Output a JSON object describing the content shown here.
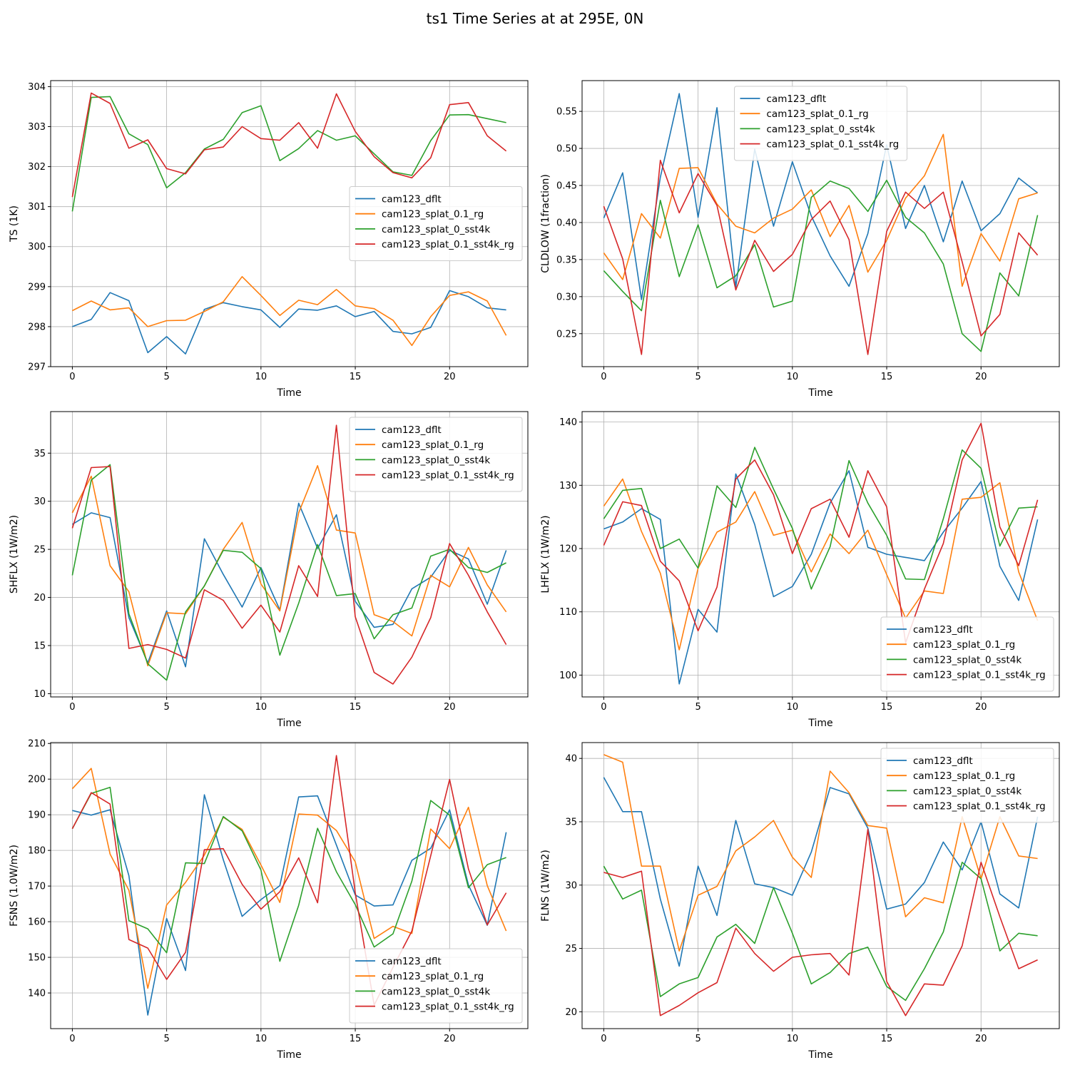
{
  "suptitle": "ts1 Time Series at at 295E, 0N",
  "colors": {
    "cam123_dflt": "#1f77b4",
    "cam123_splat_0.1_rg": "#ff7f0e",
    "cam123_splat_0_sst4k": "#2ca02c",
    "cam123_splat_0.1_sst4k_rg": "#d62728"
  },
  "chart_data": [
    {
      "type": "line",
      "xlabel": "Time",
      "ylabel": "TS (1K)",
      "xlim": [
        -1.15,
        24.15
      ],
      "ylim": [
        297.0,
        304.15
      ],
      "xticks": [
        0,
        5,
        10,
        15,
        20
      ],
      "yticks": [
        297,
        298,
        299,
        300,
        301,
        302,
        303,
        304
      ],
      "ytick_decimals": 0,
      "grid": true,
      "legend": "center-right",
      "x": [
        0,
        1,
        2,
        3,
        4,
        5,
        6,
        7,
        8,
        9,
        10,
        11,
        12,
        13,
        14,
        15,
        16,
        17,
        18,
        19,
        20,
        21,
        22,
        23
      ],
      "series": [
        {
          "name": "cam123_dflt",
          "values": [
            298.0,
            298.18,
            298.85,
            298.65,
            297.35,
            297.75,
            297.32,
            298.43,
            298.6,
            298.5,
            298.42,
            297.98,
            298.44,
            298.41,
            298.52,
            298.25,
            298.38,
            297.88,
            297.82,
            297.98,
            298.9,
            298.75,
            298.47,
            298.42
          ]
        },
        {
          "name": "cam123_splat_0.1_rg",
          "values": [
            298.4,
            298.64,
            298.42,
            298.47,
            298.0,
            298.15,
            298.16,
            298.38,
            298.62,
            299.25,
            298.78,
            298.28,
            298.66,
            298.55,
            298.93,
            298.52,
            298.45,
            298.16,
            297.53,
            298.25,
            298.78,
            298.87,
            298.64,
            297.78
          ]
        },
        {
          "name": "cam123_splat_0_sst4k",
          "values": [
            300.88,
            303.73,
            303.75,
            302.82,
            302.55,
            301.47,
            301.85,
            302.44,
            302.68,
            303.35,
            303.52,
            302.15,
            302.45,
            302.9,
            302.66,
            302.77,
            302.32,
            301.87,
            301.78,
            302.65,
            303.29,
            303.3,
            303.2,
            303.1
          ]
        },
        {
          "name": "cam123_splat_0.1_sst4k_rg",
          "values": [
            301.24,
            303.84,
            303.58,
            302.46,
            302.67,
            301.95,
            301.82,
            302.42,
            302.49,
            303.0,
            302.7,
            302.66,
            303.1,
            302.46,
            303.82,
            302.88,
            302.25,
            301.85,
            301.72,
            302.22,
            303.55,
            303.6,
            302.77,
            302.39
          ]
        }
      ]
    },
    {
      "type": "line",
      "xlabel": "Time",
      "ylabel": "CLDLOW (1fraction)",
      "xlim": [
        -1.15,
        24.15
      ],
      "ylim": [
        0.2055,
        0.5915
      ],
      "xticks": [
        0,
        5,
        10,
        15,
        20
      ],
      "yticks": [
        0.25,
        0.3,
        0.35,
        0.4,
        0.45,
        0.5,
        0.55
      ],
      "ytick_decimals": 2,
      "grid": true,
      "legend": "top-center",
      "x": [
        0,
        1,
        2,
        3,
        4,
        5,
        6,
        7,
        8,
        9,
        10,
        11,
        12,
        13,
        14,
        15,
        16,
        17,
        18,
        19,
        20,
        21,
        22,
        23
      ],
      "series": [
        {
          "name": "cam123_dflt",
          "values": [
            0.406,
            0.467,
            0.296,
            0.461,
            0.574,
            0.407,
            0.555,
            0.313,
            0.499,
            0.395,
            0.482,
            0.409,
            0.355,
            0.314,
            0.385,
            0.505,
            0.392,
            0.45,
            0.374,
            0.456,
            0.389,
            0.412,
            0.46,
            0.44
          ]
        },
        {
          "name": "cam123_splat_0.1_rg",
          "values": [
            0.359,
            0.323,
            0.412,
            0.379,
            0.473,
            0.474,
            0.425,
            0.395,
            0.386,
            0.406,
            0.418,
            0.444,
            0.381,
            0.423,
            0.333,
            0.376,
            0.433,
            0.463,
            0.519,
            0.314,
            0.385,
            0.348,
            0.432,
            0.44
          ]
        },
        {
          "name": "cam123_splat_0_sst4k",
          "values": [
            0.335,
            0.307,
            0.281,
            0.43,
            0.327,
            0.397,
            0.312,
            0.328,
            0.37,
            0.286,
            0.294,
            0.434,
            0.456,
            0.446,
            0.415,
            0.457,
            0.407,
            0.386,
            0.344,
            0.25,
            0.226,
            0.332,
            0.301,
            0.41
          ]
        },
        {
          "name": "cam123_splat_0.1_sst4k_rg",
          "values": [
            0.422,
            0.351,
            0.222,
            0.484,
            0.413,
            0.466,
            0.423,
            0.309,
            0.376,
            0.334,
            0.357,
            0.404,
            0.429,
            0.377,
            0.222,
            0.388,
            0.441,
            0.419,
            0.441,
            0.347,
            0.247,
            0.276,
            0.386,
            0.356
          ]
        }
      ]
    },
    {
      "type": "line",
      "xlabel": "Time",
      "ylabel": "SHFLX (1W/m2)",
      "xlim": [
        -1.15,
        24.15
      ],
      "ylim": [
        9.66,
        39.32
      ],
      "xticks": [
        0,
        5,
        10,
        15,
        20
      ],
      "yticks": [
        10,
        15,
        20,
        25,
        30,
        35
      ],
      "ytick_decimals": 0,
      "grid": true,
      "legend": "top-right",
      "x": [
        0,
        1,
        2,
        3,
        4,
        5,
        6,
        7,
        8,
        9,
        10,
        11,
        12,
        13,
        14,
        15,
        16,
        17,
        18,
        19,
        20,
        21,
        22,
        23
      ],
      "series": [
        {
          "name": "cam123_dflt",
          "values": [
            27.6,
            28.8,
            28.3,
            17.9,
            13.2,
            18.6,
            12.8,
            26.1,
            22.4,
            19.0,
            23.1,
            18.7,
            29.8,
            25.1,
            28.6,
            19.6,
            16.9,
            17.2,
            20.9,
            22.1,
            24.9,
            24.0,
            19.3,
            24.9
          ]
        },
        {
          "name": "cam123_splat_0.1_rg",
          "values": [
            28.8,
            32.6,
            23.3,
            20.6,
            12.9,
            18.4,
            18.3,
            21.2,
            25.0,
            27.8,
            21.4,
            18.6,
            28.8,
            33.7,
            27.0,
            26.7,
            18.2,
            17.5,
            16.0,
            22.3,
            21.1,
            25.2,
            21.3,
            18.5
          ]
        },
        {
          "name": "cam123_splat_0_sst4k",
          "values": [
            22.3,
            32.2,
            33.8,
            18.3,
            13.1,
            11.4,
            18.5,
            21.2,
            24.9,
            24.7,
            23.0,
            14.0,
            19.4,
            25.5,
            20.2,
            20.4,
            15.7,
            18.2,
            18.9,
            24.3,
            25.0,
            23.1,
            22.6,
            23.6
          ]
        },
        {
          "name": "cam123_splat_0.1_sst4k_rg",
          "values": [
            27.2,
            33.5,
            33.6,
            14.7,
            15.1,
            14.6,
            13.7,
            20.8,
            19.7,
            16.8,
            19.2,
            16.4,
            23.3,
            20.1,
            37.9,
            18.0,
            12.2,
            11.0,
            13.8,
            17.9,
            25.6,
            22.3,
            18.5,
            15.1
          ]
        }
      ]
    },
    {
      "type": "line",
      "xlabel": "Time",
      "ylabel": "LHFLX (1W/m2)",
      "xlim": [
        -1.15,
        24.15
      ],
      "ylim": [
        96.55,
        141.65
      ],
      "xticks": [
        0,
        5,
        10,
        15,
        20
      ],
      "yticks": [
        100,
        110,
        120,
        130,
        140
      ],
      "ytick_decimals": 0,
      "grid": true,
      "legend": "bottom-right",
      "x": [
        0,
        1,
        2,
        3,
        4,
        5,
        6,
        7,
        8,
        9,
        10,
        11,
        12,
        13,
        14,
        15,
        16,
        17,
        18,
        19,
        20,
        21,
        22,
        23
      ],
      "series": [
        {
          "name": "cam123_dflt",
          "values": [
            123.1,
            124.2,
            126.3,
            124.6,
            98.6,
            110.4,
            106.8,
            131.8,
            123.8,
            112.4,
            114.0,
            119.1,
            127.2,
            132.3,
            120.2,
            119.1,
            118.6,
            118.1,
            122.6,
            126.4,
            130.6,
            117.2,
            111.8,
            124.6
          ]
        },
        {
          "name": "cam123_splat_0.1_rg",
          "values": [
            126.7,
            131.0,
            122.7,
            116.1,
            104.0,
            116.9,
            122.6,
            124.2,
            129.0,
            122.1,
            122.9,
            116.3,
            122.3,
            119.2,
            122.9,
            115.9,
            109.0,
            113.3,
            112.9,
            127.8,
            128.1,
            130.4,
            116.3,
            108.6
          ]
        },
        {
          "name": "cam123_splat_0_sst4k",
          "values": [
            124.7,
            129.2,
            129.5,
            120.0,
            121.5,
            116.9,
            129.9,
            126.5,
            136.0,
            129.4,
            123.2,
            113.6,
            120.3,
            133.9,
            127.2,
            122.1,
            115.2,
            115.1,
            124.7,
            135.6,
            132.7,
            120.4,
            126.4,
            126.6
          ]
        },
        {
          "name": "cam123_splat_0.1_sst4k_rg",
          "values": [
            120.5,
            127.4,
            126.8,
            118.0,
            114.9,
            107.0,
            113.9,
            131.0,
            134.0,
            128.5,
            119.2,
            126.3,
            127.8,
            121.8,
            132.3,
            126.6,
            105.1,
            113.6,
            120.8,
            134.0,
            139.8,
            123.4,
            117.3,
            127.7
          ]
        }
      ]
    },
    {
      "type": "line",
      "xlabel": "Time",
      "ylabel": "FSNS (1.0W/m2)",
      "xlim": [
        -1.15,
        24.15
      ],
      "ylim": [
        130.0,
        210.25
      ],
      "xticks": [
        0,
        5,
        10,
        15,
        20
      ],
      "yticks": [
        140,
        150,
        160,
        170,
        180,
        190,
        200,
        210
      ],
      "ytick_decimals": 0,
      "grid": true,
      "legend": "bottom-right",
      "x": [
        0,
        1,
        2,
        3,
        4,
        5,
        6,
        7,
        8,
        9,
        10,
        11,
        12,
        13,
        14,
        15,
        16,
        17,
        18,
        19,
        20,
        21,
        22,
        23
      ],
      "series": [
        {
          "name": "cam123_dflt",
          "values": [
            191.2,
            189.9,
            191.4,
            172.9,
            133.8,
            160.9,
            146.3,
            195.6,
            177.4,
            161.5,
            166.2,
            170.1,
            195.0,
            195.3,
            181.5,
            167.5,
            164.4,
            164.7,
            177.2,
            180.6,
            191.4,
            170.3,
            159.0,
            185.1
          ]
        },
        {
          "name": "cam123_splat_0.1_rg",
          "values": [
            197.3,
            203.0,
            179.0,
            168.8,
            141.3,
            164.7,
            171.0,
            178.7,
            189.3,
            185.9,
            175.9,
            165.4,
            190.2,
            189.9,
            185.6,
            176.8,
            155.3,
            158.7,
            156.7,
            186.0,
            180.5,
            192.1,
            170.1,
            157.4
          ]
        },
        {
          "name": "cam123_splat_0_sst4k",
          "values": [
            186.1,
            196.0,
            197.7,
            160.3,
            158.0,
            151.3,
            176.5,
            176.3,
            189.5,
            185.5,
            174.5,
            148.9,
            164.6,
            186.2,
            174.0,
            164.8,
            152.9,
            156.6,
            171.4,
            194.0,
            189.9,
            169.5,
            176.0,
            178.0
          ]
        },
        {
          "name": "cam123_splat_0.1_sst4k_rg",
          "values": [
            186.1,
            196.2,
            193.0,
            155.0,
            152.6,
            143.8,
            151.4,
            180.2,
            180.5,
            170.5,
            163.5,
            168.4,
            177.9,
            165.3,
            206.6,
            168.2,
            136.6,
            147.2,
            157.4,
            178.5,
            199.9,
            174.8,
            159.1,
            168.1
          ]
        }
      ]
    },
    {
      "type": "line",
      "xlabel": "Time",
      "ylabel": "FLNS (1W/m2)",
      "xlim": [
        -1.15,
        24.15
      ],
      "ylim": [
        18.67,
        41.25
      ],
      "xticks": [
        0,
        5,
        10,
        15,
        20
      ],
      "yticks": [
        20,
        25,
        30,
        35,
        40
      ],
      "ytick_decimals": 0,
      "grid": true,
      "legend": "top-right",
      "x": [
        0,
        1,
        2,
        3,
        4,
        5,
        6,
        7,
        8,
        9,
        10,
        11,
        12,
        13,
        14,
        15,
        16,
        17,
        18,
        19,
        20,
        21,
        22,
        23
      ],
      "series": [
        {
          "name": "cam123_dflt",
          "values": [
            38.5,
            35.8,
            35.8,
            28.9,
            23.6,
            31.5,
            27.6,
            35.1,
            30.1,
            29.8,
            29.2,
            32.6,
            37.7,
            37.2,
            34.5,
            28.1,
            28.5,
            30.2,
            33.4,
            31.2,
            35.0,
            29.3,
            28.2,
            35.4
          ]
        },
        {
          "name": "cam123_splat_0.1_rg",
          "values": [
            40.3,
            39.7,
            31.5,
            31.5,
            24.8,
            29.2,
            29.9,
            32.7,
            33.8,
            35.1,
            32.2,
            30.6,
            39.0,
            37.3,
            34.7,
            34.5,
            27.5,
            29.0,
            28.6,
            35.4,
            30.5,
            35.4,
            32.3,
            32.1
          ]
        },
        {
          "name": "cam123_splat_0_sst4k",
          "values": [
            31.5,
            28.9,
            29.6,
            21.2,
            22.2,
            22.7,
            25.9,
            26.9,
            25.4,
            29.8,
            26.2,
            22.2,
            23.1,
            24.6,
            25.1,
            22.0,
            20.9,
            23.4,
            26.3,
            31.8,
            30.5,
            24.8,
            26.2,
            26.0
          ]
        },
        {
          "name": "cam123_splat_0.1_sst4k_rg",
          "values": [
            31.0,
            30.6,
            31.1,
            19.7,
            20.5,
            21.5,
            22.3,
            26.6,
            24.6,
            23.2,
            24.3,
            24.5,
            24.6,
            22.9,
            34.4,
            22.4,
            19.7,
            22.2,
            22.1,
            25.2,
            31.8,
            27.5,
            23.4,
            24.1
          ]
        }
      ]
    }
  ]
}
